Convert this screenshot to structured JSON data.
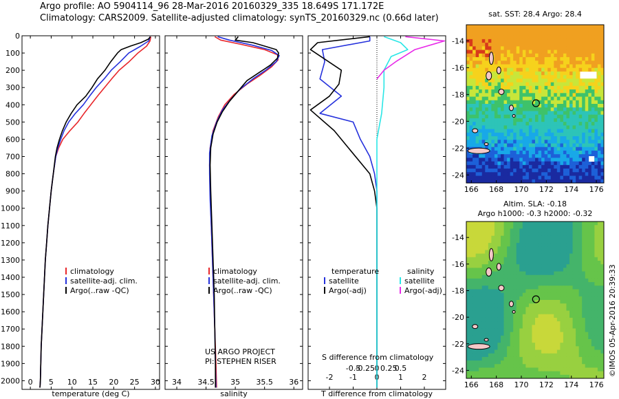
{
  "header": {
    "line1": "Argo profile: AO 5904114_96 28-Mar-2016 20160329_335 18.649S 171.172E",
    "line2": "Climatology: CARS2009. Satellite-adjusted climatology: synTS_20160329.nc (0.66d later)"
  },
  "maps": {
    "sst_title": "sat. SST: 28.4  Argo: 28.4",
    "sla_title_line1": "Altim. SLA: -0.18",
    "sla_title_line2": "Argo h1000: -0.3 h2000: -0.32",
    "credit": "©IMOS 05-Apr-2016 20:39:33",
    "lon_ticks": [
      "166",
      "168",
      "170",
      "172",
      "174",
      "176"
    ],
    "lat_ticks": [
      "-14",
      "-16",
      "-18",
      "-20",
      "-22",
      "-24"
    ],
    "argo_lat": -18.649,
    "argo_lon": 171.172
  },
  "annotations": {
    "project": "US ARGO PROJECT",
    "pi": "PI: STEPHEN RISER",
    "s_diff_label": "S difference from climatology"
  },
  "colors": {
    "climatology": "#e8262a",
    "satellite": "#2430dc",
    "argo": "#000000",
    "salinity_sat": "#29e6e6",
    "salinity_argo": "#e829e8"
  },
  "chart_data": [
    {
      "type": "line",
      "id": "temperature",
      "xlabel": "temperature (deg C)",
      "ylabel": "",
      "xlim": [
        -2,
        31
      ],
      "ylim": [
        2050,
        0
      ],
      "x_ticks": [
        "0",
        "5",
        "10",
        "15",
        "20",
        "25",
        "30"
      ],
      "y_ticks": [
        "0",
        "100",
        "200",
        "300",
        "400",
        "500",
        "600",
        "700",
        "800",
        "900",
        "1000",
        "1100",
        "1200",
        "1300",
        "1400",
        "1500",
        "1600",
        "1700",
        "1800",
        "1900",
        "2000"
      ],
      "legend": [
        "climatology",
        "satellite-adj. clim.",
        "Argo(..raw -QC)"
      ],
      "series": [
        {
          "name": "climatology",
          "color": "#e8262a",
          "points": [
            [
              28.9,
              5
            ],
            [
              28.7,
              30
            ],
            [
              27.9,
              60
            ],
            [
              25.8,
              100
            ],
            [
              23.7,
              150
            ],
            [
              21.3,
              200
            ],
            [
              19.5,
              250
            ],
            [
              17.8,
              300
            ],
            [
              16.1,
              350
            ],
            [
              14.5,
              400
            ],
            [
              12.9,
              450
            ],
            [
              11.4,
              500
            ],
            [
              9.5,
              550
            ],
            [
              7.8,
              600
            ],
            [
              6.8,
              650
            ],
            [
              6.1,
              700
            ],
            [
              5.5,
              800
            ],
            [
              5.0,
              900
            ],
            [
              4.6,
              1000
            ],
            [
              4.2,
              1100
            ],
            [
              3.9,
              1200
            ],
            [
              3.6,
              1300
            ],
            [
              3.4,
              1400
            ],
            [
              3.2,
              1500
            ],
            [
              3.0,
              1600
            ],
            [
              2.8,
              1700
            ],
            [
              2.6,
              1800
            ],
            [
              2.5,
              1900
            ],
            [
              2.4,
              2000
            ],
            [
              2.3,
              2040
            ]
          ]
        },
        {
          "name": "satellite-adj. clim.",
          "color": "#2430dc",
          "points": [
            [
              28.7,
              5
            ],
            [
              28.4,
              30
            ],
            [
              26.5,
              60
            ],
            [
              23.6,
              100
            ],
            [
              21.6,
              150
            ],
            [
              19.4,
              200
            ],
            [
              17.7,
              250
            ],
            [
              15.8,
              300
            ],
            [
              14.2,
              350
            ],
            [
              12.7,
              400
            ],
            [
              10.8,
              450
            ],
            [
              9.2,
              500
            ],
            [
              8.1,
              550
            ],
            [
              7.3,
              600
            ],
            [
              6.6,
              650
            ],
            [
              6.1,
              700
            ],
            [
              5.5,
              800
            ],
            [
              5.0,
              900
            ],
            [
              4.6,
              1000
            ],
            [
              4.2,
              1100
            ],
            [
              3.9,
              1200
            ],
            [
              3.6,
              1300
            ],
            [
              3.4,
              1400
            ],
            [
              3.2,
              1500
            ],
            [
              3.0,
              1600
            ],
            [
              2.8,
              1700
            ],
            [
              2.6,
              1800
            ],
            [
              2.5,
              1900
            ],
            [
              2.4,
              2000
            ],
            [
              2.3,
              2040
            ]
          ]
        },
        {
          "name": "Argo(..raw -QC)",
          "color": "#000000",
          "points": [
            [
              28.8,
              5
            ],
            [
              28.3,
              20
            ],
            [
              26.5,
              40
            ],
            [
              24.0,
              60
            ],
            [
              21.8,
              80
            ],
            [
              20.9,
              100
            ],
            [
              19.3,
              150
            ],
            [
              17.9,
              200
            ],
            [
              16.1,
              250
            ],
            [
              14.8,
              300
            ],
            [
              13.3,
              350
            ],
            [
              11.2,
              400
            ],
            [
              9.8,
              450
            ],
            [
              8.6,
              500
            ],
            [
              7.7,
              550
            ],
            [
              7.0,
              600
            ],
            [
              6.4,
              650
            ],
            [
              6.0,
              700
            ],
            [
              5.5,
              800
            ],
            [
              5.0,
              900
            ],
            [
              4.6,
              1000
            ],
            [
              4.2,
              1100
            ],
            [
              3.9,
              1200
            ],
            [
              3.6,
              1300
            ],
            [
              3.4,
              1400
            ],
            [
              3.2,
              1500
            ],
            [
              3.0,
              1600
            ],
            [
              2.8,
              1700
            ],
            [
              2.6,
              1800
            ],
            [
              2.5,
              1900
            ],
            [
              2.4,
              2000
            ],
            [
              2.3,
              2040
            ]
          ]
        }
      ]
    },
    {
      "type": "line",
      "id": "salinity",
      "xlabel": "salinity",
      "ylabel": "",
      "xlim": [
        33.8,
        36.15
      ],
      "ylim": [
        2050,
        0
      ],
      "x_ticks": [
        "34",
        "34.5",
        "35",
        "35.5",
        "36"
      ],
      "legend": [
        "climatology",
        "satellite-adj. clim.",
        "Argo(..raw -QC)"
      ],
      "series": [
        {
          "name": "climatology",
          "color": "#e8262a",
          "points": [
            [
              34.65,
              5
            ],
            [
              34.75,
              25
            ],
            [
              35.1,
              50
            ],
            [
              35.5,
              80
            ],
            [
              35.72,
              110
            ],
            [
              35.73,
              140
            ],
            [
              35.62,
              180
            ],
            [
              35.42,
              230
            ],
            [
              35.2,
              280
            ],
            [
              34.98,
              340
            ],
            [
              34.82,
              400
            ],
            [
              34.71,
              470
            ],
            [
              34.62,
              550
            ],
            [
              34.57,
              650
            ],
            [
              34.56,
              750
            ],
            [
              34.57,
              900
            ],
            [
              34.59,
              1100
            ],
            [
              34.61,
              1300
            ],
            [
              34.63,
              1500
            ],
            [
              34.65,
              1700
            ],
            [
              34.67,
              1900
            ],
            [
              34.68,
              2040
            ]
          ]
        },
        {
          "name": "satellite-adj. clim.",
          "color": "#2430dc",
          "points": [
            [
              34.7,
              5
            ],
            [
              34.9,
              25
            ],
            [
              35.3,
              55
            ],
            [
              35.62,
              85
            ],
            [
              35.75,
              115
            ],
            [
              35.7,
              150
            ],
            [
              35.52,
              200
            ],
            [
              35.3,
              250
            ],
            [
              35.08,
              310
            ],
            [
              34.92,
              370
            ],
            [
              34.78,
              430
            ],
            [
              34.68,
              500
            ],
            [
              34.6,
              580
            ],
            [
              34.56,
              680
            ],
            [
              34.56,
              800
            ],
            [
              34.57,
              950
            ],
            [
              34.59,
              1100
            ],
            [
              34.61,
              1300
            ],
            [
              34.63,
              1500
            ],
            [
              34.65,
              1700
            ],
            [
              34.66,
              1900
            ],
            [
              34.67,
              2040
            ]
          ]
        },
        {
          "name": "Argo(..raw -QC)",
          "color": "#000000",
          "points": [
            [
              35.05,
              5
            ],
            [
              35.0,
              25
            ],
            [
              35.3,
              40
            ],
            [
              35.5,
              60
            ],
            [
              35.7,
              80
            ],
            [
              35.74,
              100
            ],
            [
              35.72,
              130
            ],
            [
              35.6,
              170
            ],
            [
              35.42,
              210
            ],
            [
              35.2,
              260
            ],
            [
              35.05,
              320
            ],
            [
              34.9,
              380
            ],
            [
              34.78,
              440
            ],
            [
              34.69,
              500
            ],
            [
              34.62,
              570
            ],
            [
              34.58,
              650
            ],
            [
              34.57,
              750
            ],
            [
              34.58,
              900
            ],
            [
              34.6,
              1100
            ],
            [
              34.62,
              1300
            ],
            [
              34.64,
              1500
            ],
            [
              34.65,
              1700
            ],
            [
              34.66,
              1900
            ],
            [
              34.66,
              2040
            ]
          ]
        }
      ]
    },
    {
      "type": "line",
      "id": "difference",
      "xlabel": "T difference from climatology",
      "ylabel": "",
      "xlim": [
        -2.9,
        2.9
      ],
      "ylim": [
        2050,
        0
      ],
      "x_ticks": [
        "-2",
        "-1",
        "0",
        "1",
        "2"
      ],
      "x2_ticks": [
        "-0.5",
        "-0.25",
        "0",
        "0.25",
        "0.5"
      ],
      "legend": [
        "temperature",
        "satellite",
        "Argo(-adj)",
        "salinity",
        "satellite",
        "Argo(-adj)"
      ],
      "series": [
        {
          "name": "temperature satellite",
          "color": "#2430dc",
          "points": [
            [
              -0.3,
              5
            ],
            [
              -0.3,
              30
            ],
            [
              -2.3,
              80
            ],
            [
              -2.2,
              150
            ],
            [
              -2.4,
              250
            ],
            [
              -1.5,
              350
            ],
            [
              -2.4,
              450
            ],
            [
              -1.0,
              500
            ],
            [
              -0.7,
              600
            ],
            [
              -0.3,
              700
            ],
            [
              -0.1,
              800
            ],
            [
              0.0,
              900
            ],
            [
              0.0,
              2040
            ]
          ]
        },
        {
          "name": "temperature Argo(-adj)",
          "color": "#000000",
          "points": [
            [
              -0.3,
              5
            ],
            [
              -2.5,
              40
            ],
            [
              -2.8,
              80
            ],
            [
              -1.5,
              200
            ],
            [
              -1.6,
              280
            ],
            [
              -2.0,
              350
            ],
            [
              -2.8,
              430
            ],
            [
              -1.8,
              550
            ],
            [
              -1.2,
              650
            ],
            [
              -0.3,
              800
            ],
            [
              -0.1,
              900
            ],
            [
              0.0,
              1000
            ],
            [
              0.0,
              2040
            ]
          ]
        },
        {
          "name": "salinity satellite",
          "color": "#29e6e6",
          "points": [
            [
              0.3,
              5
            ],
            [
              1.0,
              40
            ],
            [
              1.3,
              80
            ],
            [
              0.6,
              120
            ],
            [
              0.3,
              200
            ],
            [
              0.3,
              300
            ],
            [
              0.2,
              450
            ],
            [
              0.0,
              600
            ],
            [
              0.0,
              2040
            ]
          ]
        },
        {
          "name": "salinity Argo(-adj)",
          "color": "#e829e8",
          "points": [
            [
              1.2,
              5
            ],
            [
              2.85,
              30
            ],
            [
              1.6,
              80
            ],
            [
              0.8,
              150
            ],
            [
              0.3,
              200
            ],
            [
              0.0,
              250
            ]
          ]
        }
      ]
    }
  ]
}
